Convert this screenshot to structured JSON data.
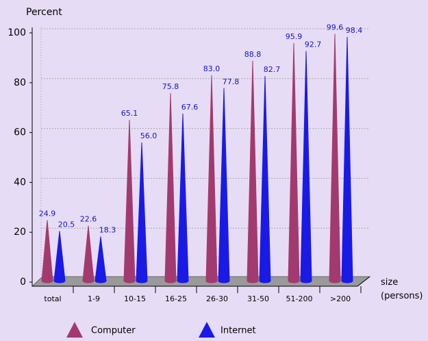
{
  "chart_data": {
    "type": "cone",
    "ylabel": "Percent",
    "xlabel": "size (persons)",
    "categories": [
      "total",
      "1-9",
      "10-15",
      "16-25",
      "26-30",
      "31-50",
      "51-200",
      ">200"
    ],
    "series": [
      {
        "name": "Computer",
        "color": "#a33a6f",
        "values": [
          24.9,
          22.6,
          65.1,
          75.8,
          83.0,
          88.8,
          95.9,
          99.6
        ],
        "value_labels": [
          "24.9",
          "22.6",
          "65.1",
          "75.8",
          "83.0",
          "88.8",
          "95.9",
          "99.6"
        ]
      },
      {
        "name": "Internet",
        "color": "#1a1ae6",
        "values": [
          20.5,
          18.3,
          56.0,
          67.6,
          77.8,
          82.7,
          92.7,
          98.4
        ],
        "value_labels": [
          "20.5",
          "18.3",
          "56.0",
          "67.6",
          "77.8",
          "82.7",
          "92.7",
          "98.4"
        ]
      }
    ],
    "ylim": [
      0,
      100
    ],
    "yticks": [
      0,
      20,
      40,
      60,
      80,
      100
    ],
    "grid": true
  }
}
